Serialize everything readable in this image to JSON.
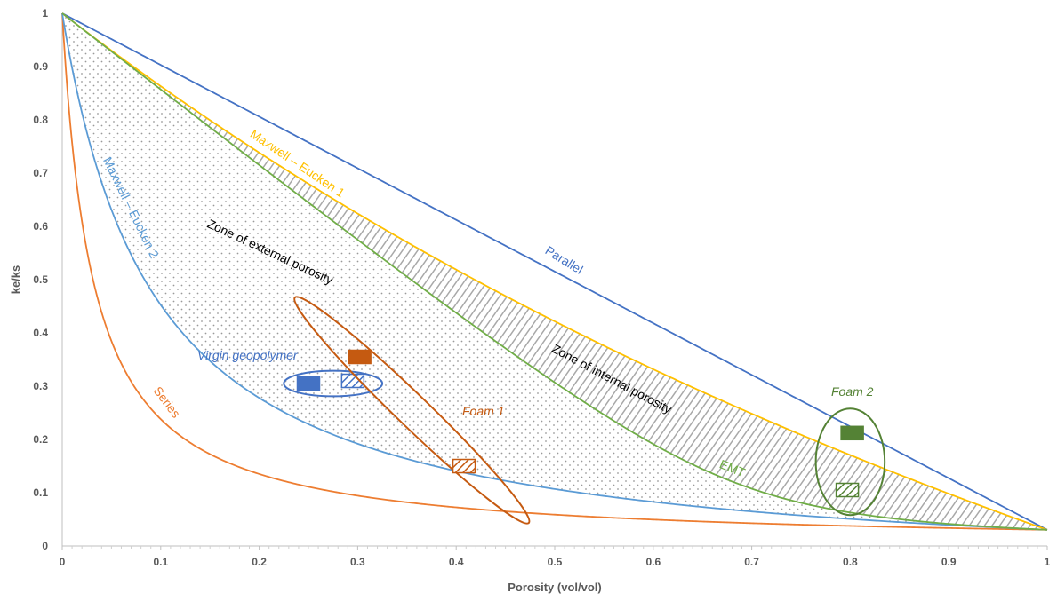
{
  "chart_data": {
    "type": "line",
    "xlabel": "Porosity (vol/vol)",
    "ylabel": "ke/ks",
    "xlim": [
      0,
      1
    ],
    "ylim": [
      0,
      1
    ],
    "x_ticks": [
      "0",
      "0.1",
      "0.2",
      "0.3",
      "0.4",
      "0.5",
      "0.6",
      "0.7",
      "0.8",
      "0.9",
      "1"
    ],
    "y_ticks": [
      "0",
      "0.1",
      "0.2",
      "0.3",
      "0.4",
      "0.5",
      "0.6",
      "0.7",
      "0.8",
      "0.9",
      "1"
    ],
    "grid": false,
    "ks_over_kf": 33,
    "series": [
      {
        "name": "Parallel",
        "model": "parallel",
        "color": "#4472C4"
      },
      {
        "name": "Series",
        "model": "series",
        "color": "#ED7D31"
      },
      {
        "name": "Maxwell – Eucken 1",
        "model": "maxwell_eucken_1",
        "color": "#FFC000"
      },
      {
        "name": "Maxwell – Eucken 2",
        "model": "maxwell_eucken_2",
        "color": "#5B9BD5"
      },
      {
        "name": "EMT",
        "model": "emt",
        "color": "#70AD47"
      }
    ],
    "zones": [
      {
        "name": "Zone of external porosity",
        "pattern": "dots"
      },
      {
        "name": "Zone of internal porosity",
        "pattern": "hatch"
      }
    ],
    "groups": [
      {
        "name": "Virgin geopolymer",
        "color": "#4472C4",
        "ellipse": {
          "cx": 0.275,
          "cy": 0.305,
          "rx": 0.05,
          "ry": 0.024
        },
        "points": [
          {
            "x": 0.25,
            "y": 0.305,
            "style": "solid"
          },
          {
            "x": 0.295,
            "y": 0.31,
            "style": "hatched"
          }
        ]
      },
      {
        "name": "Foam 1",
        "color": "#C55A11",
        "ellipse": {
          "cx": 0.355,
          "cy": 0.255,
          "rx": 0.165,
          "ry": 0.03,
          "angle_deg": 44
        },
        "points": [
          {
            "x": 0.302,
            "y": 0.355,
            "style": "solid"
          },
          {
            "x": 0.408,
            "y": 0.15,
            "style": "hatched"
          }
        ]
      },
      {
        "name": "Foam 2",
        "color": "#548235",
        "ellipse": {
          "cx": 0.8,
          "cy": 0.158,
          "rx": 0.035,
          "ry": 0.1
        },
        "points": [
          {
            "x": 0.802,
            "y": 0.212,
            "style": "solid"
          },
          {
            "x": 0.797,
            "y": 0.105,
            "style": "hatched"
          }
        ]
      }
    ]
  }
}
